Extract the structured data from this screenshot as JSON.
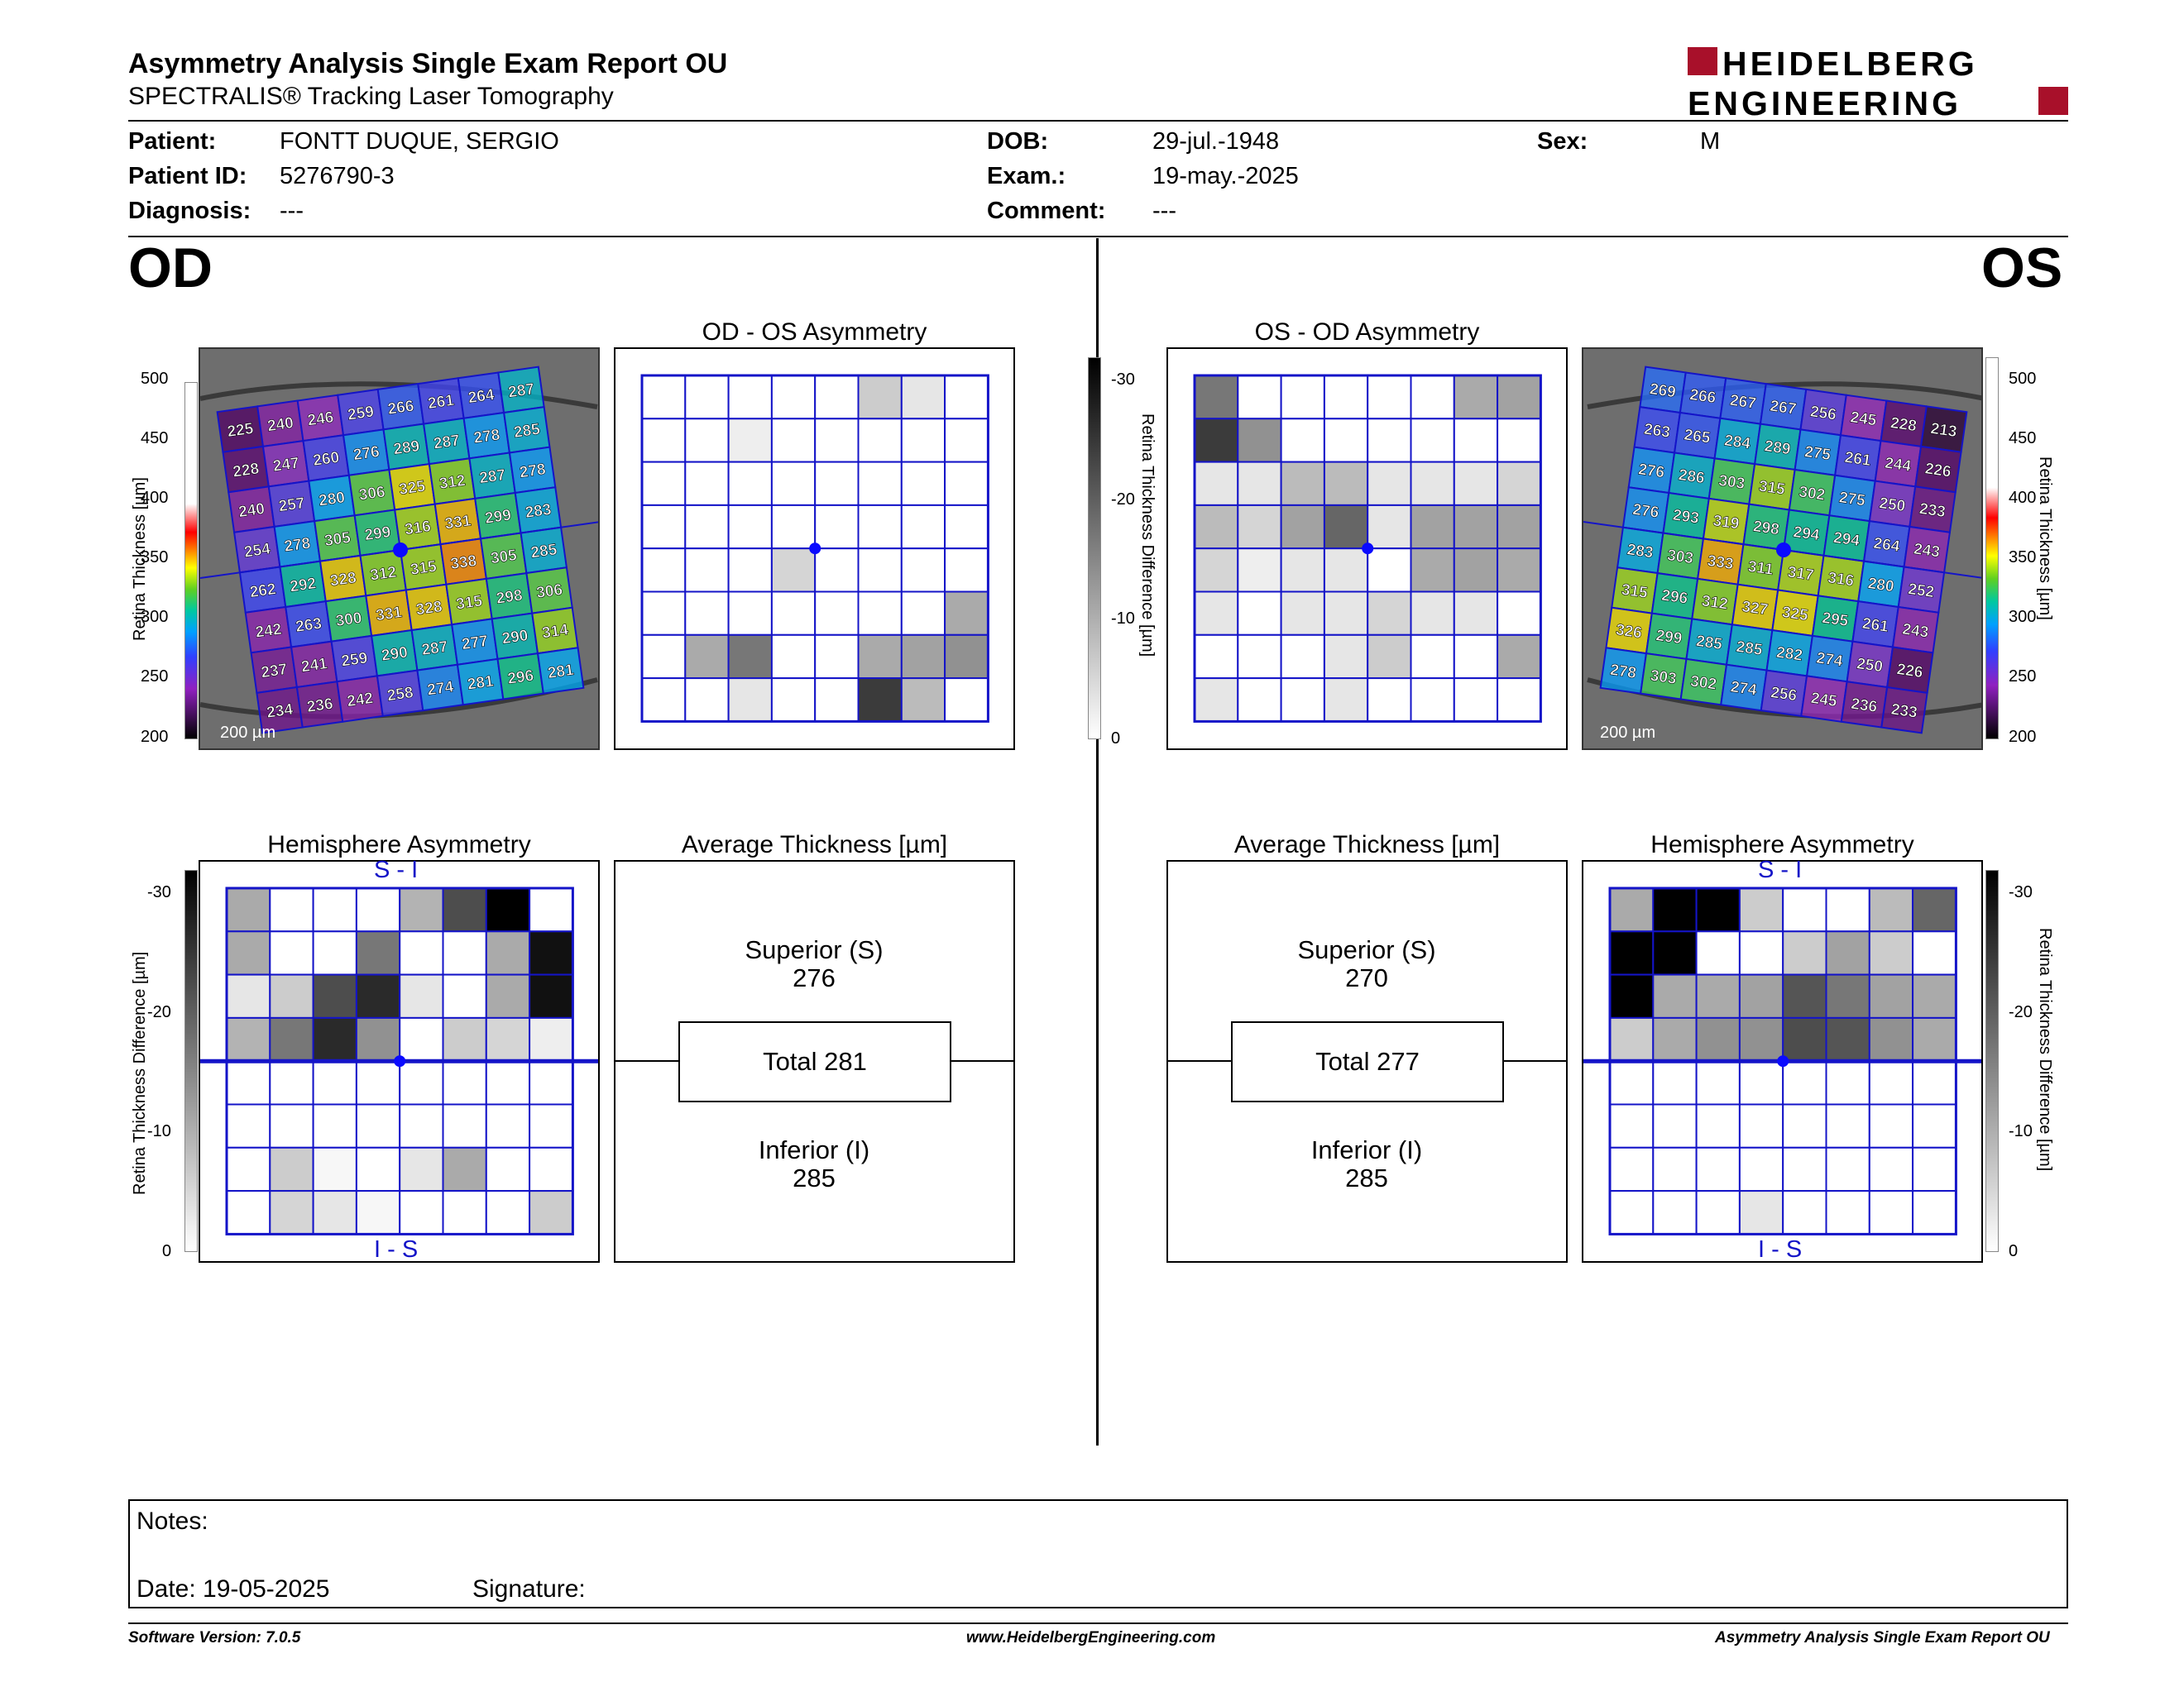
{
  "header": {
    "title": "Asymmetry Analysis Single Exam Report OU",
    "subtitle": "SPECTRALIS® Tracking Laser Tomography",
    "logo_text": [
      "HEIDELBERG",
      "ENGINEERING"
    ],
    "brand_color": "#a8102a"
  },
  "patient": {
    "patient_label": "Patient:",
    "patient_value": "FONTT DUQUE, SERGIO",
    "id_label": "Patient ID:",
    "id_value": "5276790-3",
    "diagnosis_label": "Diagnosis:",
    "diagnosis_value": "---",
    "dob_label": "DOB:",
    "dob_value": "29-jul.-1948",
    "exam_label": "Exam.:",
    "exam_value": "19-may.-2025",
    "comment_label": "Comment:",
    "comment_value": "---",
    "sex_label": "Sex:",
    "sex_value": "M"
  },
  "eyes": {
    "od": "OD",
    "os": "OS"
  },
  "od": {
    "asym_title": "OD - OS Asymmetry",
    "hemi_title": "Hemisphere Asymmetry",
    "avg_title": "Average Thickness [µm]",
    "superior_label": "Superior (S)",
    "superior_value": "276",
    "total": "Total 281",
    "inferior_label": "Inferior (I)",
    "inferior_value": "285",
    "si_label": "S - I",
    "is_label": "I - S",
    "scale_bar": "200 µm",
    "thickness": [
      [
        225,
        240,
        246,
        259,
        266,
        261,
        264,
        287
      ],
      [
        228,
        247,
        260,
        276,
        289,
        287,
        278,
        285
      ],
      [
        240,
        257,
        280,
        306,
        325,
        312,
        287,
        278
      ],
      [
        254,
        278,
        305,
        299,
        316,
        331,
        299,
        283
      ],
      [
        262,
        292,
        328,
        312,
        315,
        338,
        305,
        285
      ],
      [
        242,
        263,
        300,
        331,
        328,
        315,
        298,
        306
      ],
      [
        237,
        241,
        259,
        290,
        287,
        277,
        290,
        314
      ],
      [
        234,
        236,
        242,
        258,
        274,
        281,
        296,
        281
      ]
    ],
    "asym_grid": [
      [
        0,
        0,
        0,
        0,
        0,
        6,
        3,
        0
      ],
      [
        0,
        0,
        2,
        0,
        0,
        0,
        0,
        0
      ],
      [
        0,
        0,
        0,
        0,
        0,
        0,
        0,
        0
      ],
      [
        0,
        0,
        0,
        0,
        0,
        0,
        0,
        0
      ],
      [
        0,
        0,
        0,
        5,
        0,
        0,
        0,
        0
      ],
      [
        0,
        0,
        0,
        0,
        0,
        0,
        0,
        10
      ],
      [
        0,
        10,
        16,
        0,
        0,
        10,
        11,
        13
      ],
      [
        0,
        0,
        3,
        0,
        0,
        23,
        8,
        0
      ]
    ],
    "hemi_grid": [
      [
        10,
        0,
        0,
        0,
        9,
        21,
        30,
        0
      ],
      [
        10,
        0,
        0,
        16,
        0,
        0,
        10,
        28
      ],
      [
        3,
        6,
        21,
        25,
        3,
        0,
        10,
        28
      ],
      [
        9,
        16,
        25,
        13,
        0,
        6,
        5,
        2
      ],
      [
        0,
        0,
        0,
        0,
        0,
        0,
        0,
        0
      ],
      [
        0,
        0,
        0,
        0,
        0,
        0,
        0,
        0
      ],
      [
        0,
        6,
        1,
        0,
        3,
        10,
        0,
        0
      ],
      [
        0,
        5,
        3,
        1,
        0,
        0,
        0,
        6
      ]
    ]
  },
  "os": {
    "asym_title": "OS - OD Asymmetry",
    "hemi_title": "Hemisphere Asymmetry",
    "avg_title": "Average Thickness [µm]",
    "superior_label": "Superior (S)",
    "superior_value": "270",
    "total": "Total 277",
    "inferior_label": "Inferior (I)",
    "inferior_value": "285",
    "si_label": "S - I",
    "is_label": "I - S",
    "scale_bar": "200 µm",
    "thickness": [
      [
        269,
        266,
        267,
        267,
        256,
        245,
        228,
        213
      ],
      [
        263,
        265,
        284,
        289,
        275,
        261,
        244,
        226
      ],
      [
        276,
        286,
        303,
        315,
        302,
        275,
        250,
        233
      ],
      [
        276,
        293,
        319,
        298,
        294,
        294,
        264,
        243
      ],
      [
        283,
        303,
        333,
        311,
        317,
        316,
        280,
        252
      ],
      [
        315,
        296,
        312,
        327,
        325,
        295,
        261,
        243
      ],
      [
        326,
        299,
        285,
        285,
        282,
        274,
        250,
        226
      ],
      [
        278,
        303,
        302,
        274,
        256,
        245,
        236,
        233
      ]
    ],
    "asym_grid": [
      [
        16,
        0,
        0,
        0,
        0,
        0,
        10,
        11
      ],
      [
        23,
        13,
        0,
        0,
        0,
        0,
        0,
        0
      ],
      [
        3,
        3,
        8,
        8,
        3,
        3,
        3,
        5
      ],
      [
        8,
        5,
        11,
        18,
        3,
        11,
        11,
        11
      ],
      [
        5,
        2,
        3,
        3,
        0,
        10,
        11,
        10
      ],
      [
        3,
        0,
        3,
        3,
        5,
        3,
        3,
        0
      ],
      [
        0,
        0,
        0,
        3,
        6,
        0,
        0,
        10
      ],
      [
        3,
        0,
        0,
        3,
        0,
        0,
        0,
        0
      ]
    ],
    "hemi_grid": [
      [
        10,
        30,
        30,
        6,
        0,
        0,
        8,
        18
      ],
      [
        30,
        30,
        0,
        0,
        6,
        11,
        6,
        0
      ],
      [
        30,
        10,
        10,
        11,
        20,
        16,
        11,
        10
      ],
      [
        6,
        10,
        13,
        13,
        21,
        20,
        13,
        10
      ],
      [
        0,
        0,
        0,
        0,
        0,
        0,
        0,
        0
      ],
      [
        0,
        0,
        0,
        0,
        0,
        0,
        0,
        0
      ],
      [
        0,
        0,
        0,
        0,
        0,
        0,
        0,
        0
      ],
      [
        0,
        0,
        0,
        3,
        0,
        0,
        0,
        0
      ]
    ]
  },
  "thickness_scale": {
    "label": "Retina Thickness [µm]",
    "ticks": [
      "500",
      "450",
      "400",
      "350",
      "300",
      "250",
      "200"
    ]
  },
  "difference_scale": {
    "label": "Retina Thickness Difference [µm]",
    "ticks": [
      "-30",
      "-20",
      "-10",
      "0"
    ]
  },
  "notes": {
    "notes_label": "Notes:",
    "date_label": "Date: 19-05-2025",
    "signature_label": "Signature:"
  },
  "footer": {
    "version": "Software Version: 7.0.5",
    "website": "www.HeidelbergEngineering.com",
    "report_name": "Asymmetry Analysis Single Exam Report OU"
  },
  "colors": {
    "grid_blue": "#1414c8",
    "fovea_dot": "#0a0aff"
  }
}
